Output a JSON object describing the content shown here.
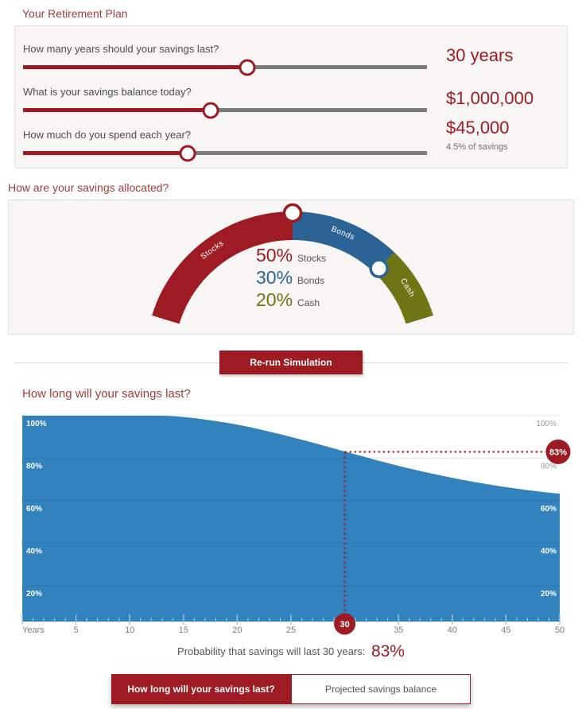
{
  "page_title": "Your Retirement Plan",
  "colors": {
    "dark_red": "#9e1b23",
    "chart_blue": "#3182bd",
    "bonds_blue": "#2b6394",
    "cash_olive": "#6f7414",
    "tick_blue": "#9cc7e1",
    "gray_label": "#7d7d7d"
  },
  "sliders": {
    "items": [
      {
        "question": "How many years should your savings last?",
        "value": "30 years",
        "subvalue": "",
        "percent": 55.6
      },
      {
        "question": "What is your savings balance today?",
        "value": "$1,000,000",
        "subvalue": "",
        "percent": 46.5
      },
      {
        "question": "How much do you spend each year?",
        "value": "$45,000",
        "subvalue": "4.5% of savings",
        "percent": 40.7
      }
    ]
  },
  "allocation": {
    "title": "How are your savings allocated?",
    "segments": [
      {
        "label": "Stocks",
        "percent": 50,
        "color": "#9e1b23"
      },
      {
        "label": "Bonds",
        "percent": 30,
        "color": "#2b6394"
      },
      {
        "label": "Cash",
        "percent": 20,
        "color": "#6f7414"
      }
    ]
  },
  "simulate_button": "Re-run Simulation",
  "chart_data": {
    "type": "area",
    "title": "How long will your savings last?",
    "x_label": "Years",
    "x_range": [
      0,
      50
    ],
    "y_range": [
      0,
      100
    ],
    "x_ticks": [
      5,
      10,
      15,
      20,
      25,
      30,
      35,
      40,
      45,
      50
    ],
    "y_tick_labels": [
      "20%",
      "40%",
      "60%",
      "80%",
      "100%"
    ],
    "grid": true,
    "series_name": "Probability savings will last",
    "x": [
      0,
      1,
      2,
      3,
      4,
      5,
      6,
      7,
      8,
      9,
      10,
      11,
      12,
      13,
      14,
      15,
      16,
      17,
      18,
      19,
      20,
      21,
      22,
      23,
      24,
      25,
      26,
      27,
      28,
      29,
      30,
      31,
      32,
      33,
      34,
      35,
      36,
      37,
      38,
      39,
      40,
      41,
      42,
      43,
      44,
      45,
      46,
      47,
      48,
      49,
      50
    ],
    "values": [
      100,
      100,
      100,
      100,
      100,
      100,
      100,
      100,
      100,
      100,
      100,
      100,
      100,
      100,
      99.8,
      99.4,
      98.9,
      98.2,
      97.5,
      96.7,
      95.8,
      94.8,
      93.7,
      92.5,
      91.3,
      90,
      88.7,
      87.4,
      86,
      84.6,
      83.2,
      81.8,
      80.4,
      79,
      77.7,
      76.4,
      75.2,
      74,
      72.9,
      71.8,
      70.8,
      69.8,
      68.9,
      68,
      67.2,
      66.4,
      65.7,
      65,
      64.4,
      63.8,
      63.3
    ],
    "marker": {
      "x": 30,
      "y": 83,
      "x_badge_label": "30",
      "y_badge_label": "83%"
    },
    "area_color": "#3182bd"
  },
  "probability_note": {
    "text": "Probability that savings will last 30 years:",
    "value": "83%"
  },
  "tabs": [
    {
      "label": "How long will your savings last?",
      "active": true
    },
    {
      "label": "Projected savings balance",
      "active": false
    }
  ]
}
